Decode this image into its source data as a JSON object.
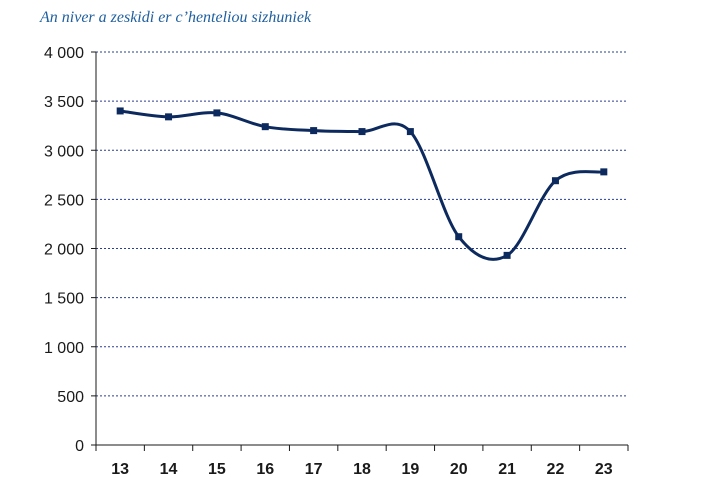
{
  "chart_data": {
    "type": "line",
    "title": "An niver a zeskidi er c’henteliou sizhuniek",
    "xlabel": "",
    "ylabel": "",
    "categories": [
      "13",
      "14",
      "15",
      "16",
      "17",
      "18",
      "19",
      "20",
      "21",
      "22",
      "23"
    ],
    "series": [
      {
        "values": [
          3400,
          3340,
          3380,
          3240,
          3200,
          3190,
          3190,
          2120,
          1930,
          2690,
          2780
        ]
      }
    ],
    "yticks": [
      "0",
      "500",
      "1 000",
      "1 500",
      "2 000",
      "2 500",
      "3 000",
      "3 500",
      "4 000"
    ],
    "ylim": [
      0,
      4000
    ],
    "grid": "horizontal dashed",
    "legend": "none",
    "colors": {
      "line": "#0d2a5e",
      "marker": "#0d2a5e",
      "grid": "#2a3f8f",
      "axis": "#1a1a1a",
      "title": "#1f5f9f"
    }
  }
}
